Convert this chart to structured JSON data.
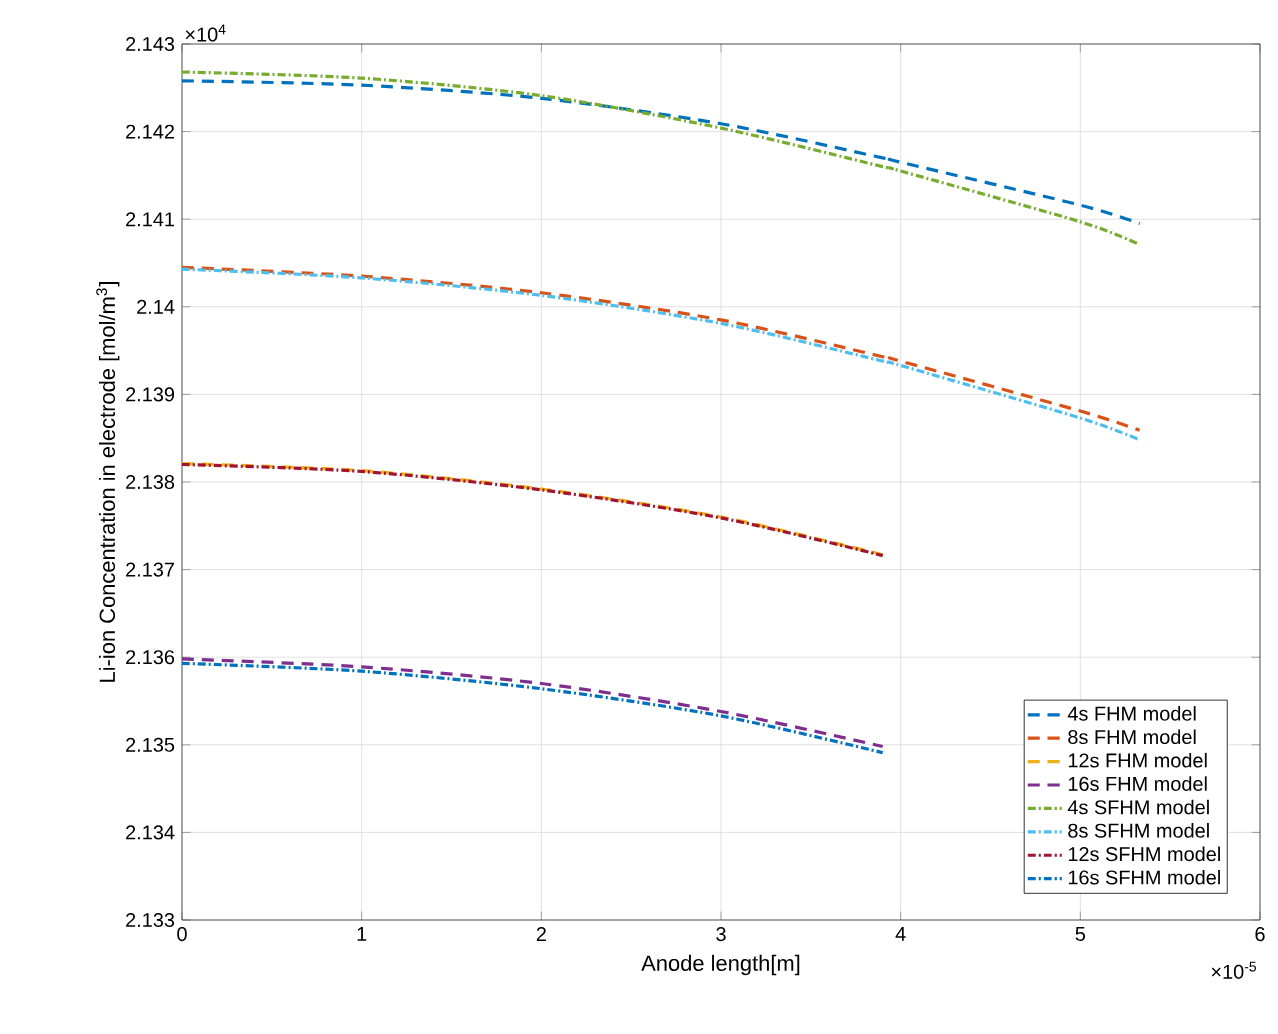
{
  "chart_data": {
    "type": "line",
    "xlabel": "Anode length[m]",
    "ylabel": "Li-ion Concentration in electrode [mol/m$^{3}$]",
    "annotations": [
      "×10$^{4}$",
      "×10$^{-5}$"
    ],
    "x": [
      0,
      1,
      2,
      3,
      3.9,
      4,
      5,
      5.33
    ],
    "xlim": [
      0,
      6
    ],
    "xticks": [
      0,
      1,
      2,
      3,
      4,
      5,
      6
    ],
    "ylim": [
      2.133,
      2.143
    ],
    "yticks": [
      2.133,
      2.134,
      2.135,
      2.136,
      2.137,
      2.138,
      2.139,
      2.14,
      2.141,
      2.142,
      2.143
    ],
    "grid": true,
    "legend": "bottom right",
    "series": [
      {
        "name": "4s FHM model",
        "color": "#0072bd",
        "line_style": "dashed",
        "values": [
          2.14258,
          2.14253,
          2.14238,
          2.14209,
          2.1417,
          2.14165,
          2.14116,
          2.14095
        ]
      },
      {
        "name": "8s FHM model",
        "color": "#d95319",
        "line_style": "dashed",
        "values": [
          2.14045,
          2.14035,
          2.14016,
          2.13985,
          2.13943,
          2.13938,
          2.13881,
          2.13859
        ]
      },
      {
        "name": "12s FHM model",
        "color": "#edb120",
        "line_style": "dashed",
        "values": [
          2.13821,
          2.13813,
          2.13792,
          2.1376,
          2.13717,
          null,
          null,
          null
        ]
      },
      {
        "name": "16s FHM model",
        "color": "#7e2f8e",
        "line_style": "dashed",
        "values": [
          2.13598,
          2.13589,
          2.1357,
          2.13538,
          2.13498,
          null,
          null,
          null
        ]
      },
      {
        "name": "4s SFHM model",
        "color": "#77ac30",
        "line_style": "dashdot",
        "values": [
          2.14268,
          2.14261,
          2.14241,
          2.14204,
          2.1416,
          2.14155,
          2.14097,
          2.14071
        ]
      },
      {
        "name": "8s SFHM model",
        "color": "#4dbeee",
        "line_style": "dashdot",
        "values": [
          2.14043,
          2.14033,
          2.14013,
          2.13981,
          2.13938,
          2.13933,
          2.13873,
          2.13848
        ]
      },
      {
        "name": "12s SFHM model",
        "color": "#a2142f",
        "line_style": "dashdot",
        "values": [
          2.1382,
          2.13812,
          2.13791,
          2.13759,
          2.13716,
          null,
          null,
          null
        ]
      },
      {
        "name": "16s SFHM model",
        "color": "#0072bd",
        "line_style": "dashdot",
        "values": [
          2.13593,
          2.13584,
          2.13564,
          2.13533,
          2.13491,
          null,
          null,
          null
        ]
      }
    ]
  }
}
